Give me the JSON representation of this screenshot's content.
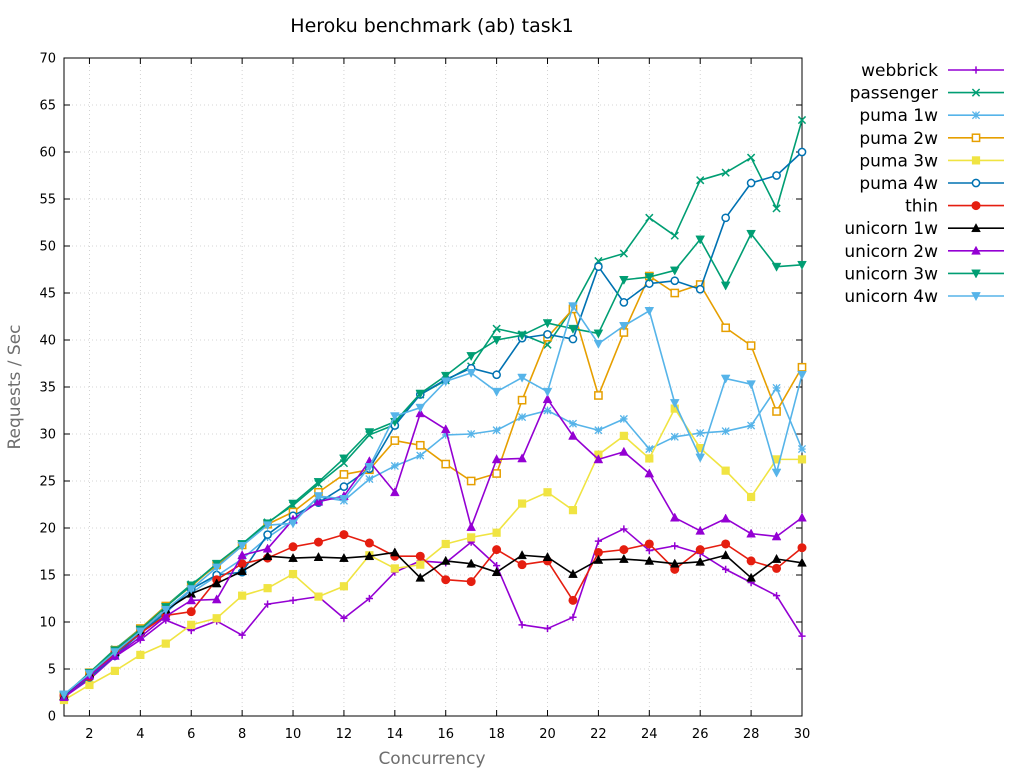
{
  "chart_data": {
    "type": "line",
    "title": "Heroku benchmark (ab) task1",
    "xlabel": "Concurrency",
    "ylabel": "Requests / Sec",
    "xlim": [
      1,
      30
    ],
    "ylim": [
      0,
      70
    ],
    "xticks": [
      2,
      4,
      6,
      8,
      10,
      12,
      14,
      16,
      18,
      20,
      22,
      24,
      26,
      28,
      30
    ],
    "yticks": [
      0,
      5,
      10,
      15,
      20,
      25,
      30,
      35,
      40,
      45,
      50,
      55,
      60,
      65,
      70
    ],
    "grid": true,
    "legend_position": "top-right, outside plot",
    "x": [
      1,
      2,
      3,
      4,
      5,
      6,
      7,
      8,
      9,
      10,
      11,
      12,
      13,
      14,
      15,
      16,
      17,
      18,
      19,
      20,
      21,
      22,
      23,
      24,
      25,
      26,
      27,
      28,
      29,
      30
    ],
    "series": [
      {
        "name": "webbrick",
        "color": "#9400d3",
        "marker": "plus",
        "values": [
          2.0,
          3.9,
          6.3,
          8.1,
          10.2,
          9.1,
          10.1,
          8.6,
          11.9,
          12.3,
          12.7,
          10.4,
          12.5,
          15.3,
          16.5,
          16.3,
          18.5,
          16.0,
          9.7,
          9.3,
          10.5,
          18.6,
          19.9,
          17.6,
          18.1,
          17.3,
          15.6,
          14.2,
          12.8,
          8.5
        ]
      },
      {
        "name": "passenger",
        "color": "#009e73",
        "marker": "x",
        "values": [
          2.1,
          4.6,
          7.1,
          9.3,
          11.7,
          14.0,
          16.0,
          18.3,
          20.6,
          22.4,
          24.7,
          26.9,
          29.9,
          31.0,
          34.2,
          35.7,
          37.2,
          41.2,
          40.6,
          39.5,
          43.4,
          48.4,
          49.2,
          53.0,
          51.1,
          57.0,
          57.8,
          59.4,
          54.0,
          63.4
        ]
      },
      {
        "name": "puma 1w",
        "color": "#56b4e9",
        "marker": "star",
        "values": [
          2.2,
          4.3,
          6.6,
          8.7,
          11.2,
          13.1,
          14.9,
          16.7,
          19.0,
          20.8,
          23.3,
          22.9,
          25.2,
          26.6,
          27.7,
          29.9,
          30.0,
          30.4,
          31.8,
          32.5,
          31.1,
          30.4,
          31.6,
          28.4,
          29.7,
          30.1,
          30.3,
          30.9,
          34.9,
          28.4
        ]
      },
      {
        "name": "puma 2w",
        "color": "#e69f00",
        "marker": "square",
        "values": [
          2.1,
          4.6,
          7.0,
          9.3,
          11.7,
          13.8,
          16.1,
          18.2,
          20.4,
          21.7,
          23.8,
          25.7,
          26.2,
          29.3,
          28.8,
          26.8,
          25.0,
          25.8,
          33.6,
          40.3,
          43.3,
          34.1,
          40.8,
          46.8,
          45.0,
          45.9,
          41.3,
          39.4,
          32.4,
          37.1
        ]
      },
      {
        "name": "puma 3w",
        "color": "#f0e442",
        "marker": "square-filled",
        "values": [
          1.7,
          3.3,
          4.8,
          6.5,
          7.7,
          9.7,
          10.4,
          12.8,
          13.6,
          15.1,
          12.7,
          13.8,
          17.1,
          15.7,
          16.1,
          18.3,
          19.0,
          19.5,
          22.6,
          23.8,
          21.9,
          27.8,
          29.8,
          27.4,
          32.7,
          28.5,
          26.1,
          23.3,
          27.3,
          27.3
        ]
      },
      {
        "name": "puma 4w",
        "color": "#0072b2",
        "marker": "circle",
        "values": [
          2.1,
          4.1,
          6.4,
          8.8,
          11.0,
          13.5,
          15.0,
          15.3,
          19.3,
          21.3,
          22.7,
          24.4,
          26.3,
          30.9,
          34.2,
          35.8,
          37.0,
          36.3,
          40.2,
          40.6,
          40.1,
          47.8,
          44.0,
          46.0,
          46.3,
          45.4,
          53.0,
          56.7,
          57.5,
          60.0
        ]
      },
      {
        "name": "thin",
        "color": "#e51e10",
        "marker": "circle-filled",
        "values": [
          2.2,
          4.2,
          6.7,
          8.8,
          10.7,
          11.1,
          14.5,
          16.2,
          16.8,
          18.0,
          18.5,
          19.3,
          18.4,
          17.0,
          17.0,
          14.5,
          14.3,
          17.7,
          16.1,
          16.5,
          12.3,
          17.4,
          17.7,
          18.3,
          15.6,
          17.7,
          18.3,
          16.5,
          15.7,
          17.9
        ]
      },
      {
        "name": "unicorn 1w",
        "color": "#000000",
        "marker": "triangle-up",
        "values": [
          2.1,
          4.5,
          6.8,
          9.0,
          11.3,
          13.0,
          14.1,
          15.4,
          17.0,
          16.8,
          16.9,
          16.8,
          17.0,
          17.4,
          14.7,
          16.5,
          16.2,
          15.3,
          17.1,
          16.9,
          15.1,
          16.6,
          16.7,
          16.5,
          16.2,
          16.4,
          17.1,
          14.7,
          16.7,
          16.3
        ]
      },
      {
        "name": "unicorn 2w",
        "color": "#9400d3",
        "marker": "triangle-up",
        "values": [
          2.0,
          4.3,
          6.4,
          8.4,
          10.6,
          12.3,
          12.4,
          17.1,
          17.8,
          20.9,
          22.8,
          23.4,
          27.1,
          23.8,
          32.2,
          30.5,
          20.1,
          27.3,
          27.4,
          33.7,
          29.8,
          27.3,
          28.1,
          25.8,
          21.1,
          19.7,
          21.0,
          19.4,
          19.1,
          21.1
        ]
      },
      {
        "name": "unicorn 3w",
        "color": "#009e73",
        "marker": "triangle-down",
        "values": [
          2.2,
          4.6,
          7.0,
          9.2,
          11.6,
          13.9,
          16.2,
          18.3,
          20.5,
          22.6,
          24.9,
          27.4,
          30.2,
          31.3,
          34.3,
          36.2,
          38.3,
          40.0,
          40.5,
          41.8,
          41.2,
          40.7,
          46.4,
          46.7,
          47.4,
          50.7,
          45.8,
          51.3,
          47.8,
          48.0
        ]
      },
      {
        "name": "unicorn 4w",
        "color": "#56b4e9",
        "marker": "triangle-down",
        "values": [
          2.3,
          4.5,
          6.8,
          9.0,
          11.3,
          13.5,
          15.8,
          18.1,
          20.3,
          20.5,
          23.4,
          23.1,
          26.5,
          31.9,
          32.8,
          35.6,
          36.5,
          34.5,
          36.0,
          34.5,
          43.6,
          39.6,
          41.5,
          43.1,
          33.3,
          27.5,
          35.9,
          35.3,
          25.9,
          36.3
        ]
      }
    ]
  }
}
